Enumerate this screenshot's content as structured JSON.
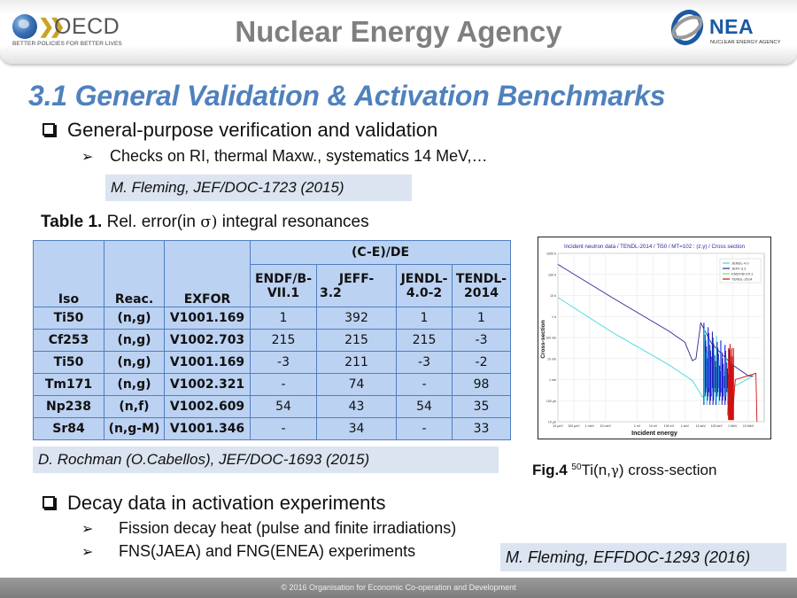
{
  "header": {
    "title": "Nuclear Energy Agency",
    "oecd_logo": {
      "icon": "oecd-globe-icon",
      "wordmark": "OECD",
      "tagline": "BETTER POLICIES FOR BETTER LIVES"
    },
    "nea_logo": {
      "icon": "nea-ring-icon",
      "wordmark": "NEA",
      "tagline": "NUCLEAR ENERGY AGENCY"
    }
  },
  "slide": {
    "title": "3.1 General Validation & Activation Benchmarks",
    "section1": {
      "bullet": "General-purpose verification and validation",
      "sub_bullets": [
        "Checks on RI, thermal Maxw., systematics 14 MeV,…"
      ],
      "reference": "M. Fleming, JEF/DOC-1723  (2015)"
    },
    "table": {
      "caption_bold": "Table 1.",
      "caption_pre": " Rel. error(in ",
      "caption_symbol": "σ)",
      "caption_post": "  integral resonances",
      "group_header": "(C-E)/DE",
      "columns": [
        "Iso",
        "Reac.",
        "EXFOR",
        "ENDF/B-VII.1",
        "JEFF-3.2",
        "JENDL-4.0-2",
        "TENDL-2014"
      ],
      "column_lines": [
        [
          "Iso"
        ],
        [
          "Reac."
        ],
        [
          "EXFOR"
        ],
        [
          "ENDF/B-",
          "VII.1"
        ],
        [
          "JEFF-",
          "3.2"
        ],
        [
          "JENDL-",
          "4.0-2"
        ],
        [
          "TENDL-",
          "2014"
        ]
      ],
      "rows": [
        [
          "Ti50",
          "(n,g)",
          "V1001.169",
          "1",
          "392",
          "1",
          "1"
        ],
        [
          "Cf253",
          "(n,g)",
          "V1002.703",
          "215",
          "215",
          "215",
          "-3"
        ],
        [
          "Ti50",
          "(n,g)",
          "V1001.169",
          "-3",
          "211",
          "-3",
          "-2"
        ],
        [
          "Tm171",
          "(n,g)",
          "V1002.321",
          "-",
          "74",
          "-",
          "98"
        ],
        [
          "Np238",
          "(n,f)",
          "V1002.609",
          "54",
          "43",
          "54",
          "35"
        ],
        [
          "Sr84",
          "(n,g-M)",
          "V1001.346",
          "-",
          "34",
          "-",
          "33"
        ]
      ],
      "reference": "D. Rochman (O.Cabellos), JEF/DOC-1693 (2015)"
    },
    "figure": {
      "caption_bold": "Fig.4",
      "caption_sup": "50",
      "caption_pre": "Ti(n,",
      "caption_symbol": "γ",
      "caption_post": ") cross-section"
    },
    "section2": {
      "bullet": "Decay data in activation experiments",
      "sub_bullets": [
        "Fission decay heat (pulse and finite irradiations)",
        "FNS(JAEA) and FNG(ENEA) experiments"
      ],
      "reference": "M. Fleming, EFFDOC-1293 (2016)"
    }
  },
  "chart_data": {
    "type": "line",
    "title": "Incident neutron data / TENDL-2014 / Ti50 / MT=102 : (z,γ) / Cross section",
    "xlabel": "Incident energy",
    "ylabel": "Cross-section",
    "xscale": "log",
    "yscale": "log",
    "x_ticks": [
      "10 μeV",
      "100 μeV",
      "1 meV",
      "10 meV",
      "1 eV",
      "10 eV",
      "100 eV",
      "1 keV",
      "10 keV",
      "100 keV",
      "1 MeV",
      "10 MeV"
    ],
    "y_ticks": [
      "10 μb",
      "100 μb",
      "1 mb",
      "10 mb",
      "100 mb",
      "1 b",
      "10 b",
      "100 b",
      "1000 b"
    ],
    "xlim_eV": [
      1e-05,
      100000000.0
    ],
    "ylim_b": [
      1e-05,
      1000
    ],
    "grid": true,
    "legend_position": "top-right",
    "series": [
      {
        "name": "JENDL-4.0",
        "color": "#3fd8d8",
        "points_eV_b": [
          [
            1e-05,
            8
          ],
          [
            0.0253,
            0.18
          ],
          [
            100,
            0.005
          ],
          [
            3000,
            0.0009
          ],
          [
            13000,
            0.00015
          ],
          [
            20000,
            0.0002
          ],
          [
            25000,
            0.02
          ],
          [
            1500000.0,
            0.0005
          ],
          [
            20000000.0,
            0.0015
          ]
        ]
      },
      {
        "name": "JEFF-3.2",
        "color": "#2a2a9a",
        "points_eV_b": [
          [
            1e-05,
            300
          ],
          [
            0.0253,
            8
          ],
          [
            100,
            0.2
          ],
          [
            1000,
            0.06
          ],
          [
            3000,
            0.008
          ],
          [
            5000,
            0.01
          ],
          [
            10000,
            0.5
          ],
          [
            50000,
            0.05
          ],
          [
            1000000.0,
            0.005
          ],
          [
            10000000.0,
            0.0015
          ],
          [
            20000000.0,
            0.0015
          ]
        ]
      },
      {
        "name": "ENDF/B-VII.1",
        "color": "#66e066",
        "points_eV_b": []
      },
      {
        "name": "TENDL-2014",
        "color": "#d01010",
        "points_eV_b": [
          [
            500000.0,
            2e-05
          ],
          [
            700000.0,
            0.05
          ],
          [
            1000000.0,
            2e-05
          ],
          [
            1500000.0,
            0.001
          ],
          [
            30000000.0,
            0.002
          ],
          [
            35000000.0,
            1e-05
          ]
        ]
      }
    ]
  },
  "footer": {
    "text": "© 2016 Organisation for Economic Co-operation and Development"
  }
}
